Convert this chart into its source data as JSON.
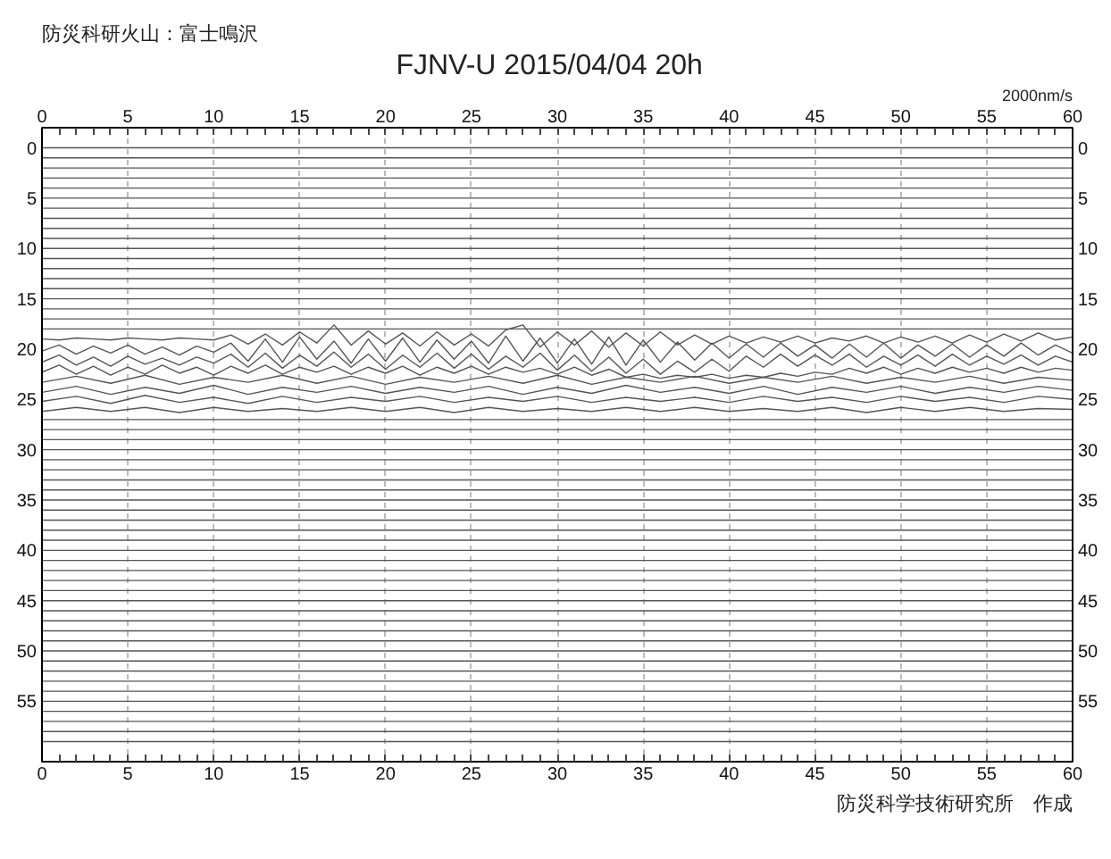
{
  "chart_data": {
    "type": "line",
    "title": "FJNV-U  2015/04/04  20h",
    "annotations": [
      "防災科研火山：富士鳴沢",
      "2000nm/s",
      "防災科学技術研究所　作成"
    ],
    "color": "#555555",
    "grid": "x",
    "xlim": [
      0,
      60
    ],
    "xticks": [
      0,
      {
        "value": 1,
        "label": null
      },
      {
        "value": 2,
        "label": null
      },
      {
        "value": 3,
        "label": null
      },
      {
        "value": 4,
        "label": null
      },
      5,
      {
        "value": 6,
        "label": null
      },
      {
        "value": 7,
        "label": null
      },
      {
        "value": 8,
        "label": null
      },
      {
        "value": 9,
        "label": null
      },
      10,
      {
        "value": 11,
        "label": null
      },
      {
        "value": 12,
        "label": null
      },
      {
        "value": 13,
        "label": null
      },
      {
        "value": 14,
        "label": null
      },
      15,
      {
        "value": 16,
        "label": null
      },
      {
        "value": 17,
        "label": null
      },
      {
        "value": 18,
        "label": null
      },
      {
        "value": 19,
        "label": null
      },
      20,
      {
        "value": 21,
        "label": null
      },
      {
        "value": 22,
        "label": null
      },
      {
        "value": 23,
        "label": null
      },
      {
        "value": 24,
        "label": null
      },
      25,
      {
        "value": 26,
        "label": null
      },
      {
        "value": 27,
        "label": null
      },
      {
        "value": 28,
        "label": null
      },
      {
        "value": 29,
        "label": null
      },
      30,
      {
        "value": 31,
        "label": null
      },
      {
        "value": 32,
        "label": null
      },
      {
        "value": 33,
        "label": null
      },
      {
        "value": 34,
        "label": null
      },
      35,
      {
        "value": 36,
        "label": null
      },
      {
        "value": 37,
        "label": null
      },
      {
        "value": 38,
        "label": null
      },
      {
        "value": 39,
        "label": null
      },
      40,
      {
        "value": 41,
        "label": null
      },
      {
        "value": 42,
        "label": null
      },
      {
        "value": 43,
        "label": null
      },
      {
        "value": 44,
        "label": null
      },
      45,
      {
        "value": 46,
        "label": null
      },
      {
        "value": 47,
        "label": null
      },
      {
        "value": 48,
        "label": null
      },
      {
        "value": 49,
        "label": null
      },
      50,
      {
        "value": 51,
        "label": null
      },
      {
        "value": 52,
        "label": null
      },
      {
        "value": 53,
        "label": null
      },
      {
        "value": 54,
        "label": null
      },
      55,
      {
        "value": 56,
        "label": null
      },
      {
        "value": 57,
        "label": null
      },
      {
        "value": 58,
        "label": null
      },
      {
        "value": 59,
        "label": null
      },
      60
    ],
    "x2lim": [
      0,
      60
    ],
    "x2ticks": [
      0,
      {
        "value": 1,
        "label": null
      },
      {
        "value": 2,
        "label": null
      },
      {
        "value": 3,
        "label": null
      },
      {
        "value": 4,
        "label": null
      },
      5,
      {
        "value": 6,
        "label": null
      },
      {
        "value": 7,
        "label": null
      },
      {
        "value": 8,
        "label": null
      },
      {
        "value": 9,
        "label": null
      },
      10,
      {
        "value": 11,
        "label": null
      },
      {
        "value": 12,
        "label": null
      },
      {
        "value": 13,
        "label": null
      },
      {
        "value": 14,
        "label": null
      },
      15,
      {
        "value": 16,
        "label": null
      },
      {
        "value": 17,
        "label": null
      },
      {
        "value": 18,
        "label": null
      },
      {
        "value": 19,
        "label": null
      },
      20,
      {
        "value": 21,
        "label": null
      },
      {
        "value": 22,
        "label": null
      },
      {
        "value": 23,
        "label": null
      },
      {
        "value": 24,
        "label": null
      },
      25,
      {
        "value": 26,
        "label": null
      },
      {
        "value": 27,
        "label": null
      },
      {
        "value": 28,
        "label": null
      },
      {
        "value": 29,
        "label": null
      },
      30,
      {
        "value": 31,
        "label": null
      },
      {
        "value": 32,
        "label": null
      },
      {
        "value": 33,
        "label": null
      },
      {
        "value": 34,
        "label": null
      },
      35,
      {
        "value": 36,
        "label": null
      },
      {
        "value": 37,
        "label": null
      },
      {
        "value": 38,
        "label": null
      },
      {
        "value": 39,
        "label": null
      },
      40,
      {
        "value": 41,
        "label": null
      },
      {
        "value": 42,
        "label": null
      },
      {
        "value": 43,
        "label": null
      },
      {
        "value": 44,
        "label": null
      },
      45,
      {
        "value": 46,
        "label": null
      },
      {
        "value": 47,
        "label": null
      },
      {
        "value": 48,
        "label": null
      },
      {
        "value": 49,
        "label": null
      },
      50,
      {
        "value": 51,
        "label": null
      },
      {
        "value": 52,
        "label": null
      },
      {
        "value": 53,
        "label": null
      },
      {
        "value": 54,
        "label": null
      },
      55,
      {
        "value": 56,
        "label": null
      },
      {
        "value": 57,
        "label": null
      },
      {
        "value": 58,
        "label": null
      },
      {
        "value": 59,
        "label": null
      },
      60
    ],
    "ylim": [
      61,
      -2
    ],
    "yticks": [
      0,
      5,
      10,
      15,
      20,
      25,
      30,
      35,
      40,
      45,
      50,
      55
    ],
    "y2lim": [
      61,
      -2
    ],
    "y2ticks": [
      0,
      5,
      10,
      15,
      20,
      25,
      30,
      35,
      40,
      45,
      50,
      55
    ],
    "x": [
      0,
      60
    ],
    "series": [
      {
        "values": [
          0,
          0
        ]
      },
      {
        "values": [
          1,
          1
        ]
      },
      {
        "values": [
          2,
          2
        ]
      },
      {
        "values": [
          3,
          3
        ]
      },
      {
        "values": [
          4,
          4
        ]
      },
      {
        "values": [
          5,
          5
        ]
      },
      {
        "values": [
          6,
          6
        ]
      },
      {
        "values": [
          7,
          7
        ]
      },
      {
        "values": [
          8,
          8
        ]
      },
      {
        "values": [
          9,
          9
        ]
      },
      {
        "values": [
          10,
          10
        ]
      },
      {
        "values": [
          11,
          11
        ]
      },
      {
        "values": [
          12,
          12
        ]
      },
      {
        "values": [
          13,
          13
        ]
      },
      {
        "values": [
          14,
          14
        ]
      },
      {
        "values": [
          15,
          15
        ]
      },
      {
        "values": [
          16,
          16
        ]
      },
      {
        "values": [
          17,
          17
        ]
      },
      {
        "values": [
          18,
          18
        ]
      },
      {
        "x": [
          0,
          1,
          2,
          3,
          4,
          5,
          6,
          7,
          8,
          9,
          10,
          11,
          12,
          13,
          14,
          15,
          16,
          17,
          18,
          19,
          20,
          21,
          22,
          23,
          24,
          25,
          26,
          27,
          28,
          29,
          30,
          31,
          32,
          33,
          34,
          35,
          36,
          37,
          38,
          39,
          40,
          41,
          42,
          43,
          44,
          45,
          46,
          47,
          48,
          49,
          50,
          51,
          52,
          53,
          54,
          55,
          56,
          57,
          58,
          59,
          60
        ],
        "values": [
          19.0,
          19.1,
          18.9,
          19.0,
          19.1,
          18.9,
          19.0,
          19.1,
          18.9,
          19.0,
          19.1,
          18.6,
          19.5,
          18.5,
          19.6,
          18.3,
          19.4,
          17.6,
          19.6,
          18.2,
          19.5,
          18.4,
          19.7,
          18.3,
          19.6,
          18.5,
          19.7,
          18.1,
          17.6,
          19.8,
          18.3,
          19.6,
          18.2,
          19.8,
          18.4,
          19.7,
          18.3,
          19.6,
          18.6,
          19.5,
          18.7,
          19.4,
          18.8,
          19.3,
          18.7,
          19.4,
          18.9,
          19.2,
          18.7,
          19.4,
          18.8,
          19.3,
          18.7,
          19.4,
          18.6,
          19.3,
          18.5,
          19.2,
          18.4,
          19.1,
          18.8
        ]
      },
      {
        "x": [
          0,
          1,
          2,
          3,
          4,
          5,
          6,
          7,
          8,
          9,
          10,
          11,
          12,
          13,
          14,
          15,
          16,
          17,
          18,
          19,
          20,
          21,
          22,
          23,
          24,
          25,
          26,
          27,
          28,
          29,
          30,
          31,
          32,
          33,
          34,
          35,
          36,
          37,
          38,
          39,
          40,
          41,
          42,
          43,
          44,
          45,
          46,
          47,
          48,
          49,
          50,
          51,
          52,
          53,
          54,
          55,
          56,
          57,
          58,
          59,
          60
        ],
        "values": [
          20.2,
          19.6,
          20.5,
          19.7,
          20.4,
          19.6,
          20.5,
          19.8,
          20.6,
          19.7,
          20.3,
          19.4,
          21.2,
          19.0,
          21.3,
          18.8,
          21.0,
          19.2,
          21.4,
          19.0,
          21.2,
          18.9,
          21.3,
          19.1,
          21.0,
          19.2,
          21.4,
          18.7,
          21.2,
          18.9,
          21.4,
          19.0,
          21.5,
          18.8,
          21.6,
          19.1,
          21.3,
          19.3,
          21.1,
          19.4,
          20.9,
          19.5,
          20.8,
          19.4,
          20.7,
          19.6,
          20.9,
          19.5,
          20.8,
          19.4,
          20.9,
          19.6,
          20.7,
          19.5,
          20.8,
          19.6,
          20.7,
          19.4,
          20.6,
          19.6,
          20.4
        ]
      },
      {
        "x": [
          0,
          1,
          2,
          3,
          4,
          5,
          6,
          7,
          8,
          9,
          10,
          11,
          12,
          13,
          14,
          15,
          16,
          17,
          18,
          19,
          20,
          21,
          22,
          23,
          24,
          25,
          26,
          27,
          28,
          29,
          30,
          31,
          32,
          33,
          34,
          35,
          36,
          37,
          38,
          39,
          40,
          41,
          42,
          43,
          44,
          45,
          46,
          47,
          48,
          49,
          50,
          51,
          52,
          53,
          54,
          55,
          56,
          57,
          58,
          59,
          60
        ],
        "values": [
          21.3,
          20.6,
          21.6,
          20.8,
          21.7,
          20.7,
          21.5,
          20.9,
          21.6,
          20.8,
          21.4,
          20.5,
          21.8,
          20.4,
          21.9,
          20.6,
          21.7,
          20.3,
          21.8,
          20.5,
          22.0,
          20.6,
          21.8,
          20.4,
          21.9,
          20.5,
          22.0,
          20.7,
          21.8,
          20.4,
          22.1,
          20.6,
          22.2,
          20.8,
          22.4,
          21.0,
          22.5,
          21.2,
          22.3,
          21.0,
          22.2,
          20.7,
          21.8,
          20.5,
          21.7,
          20.6,
          21.6,
          20.5,
          21.8,
          20.7,
          21.6,
          20.6,
          21.7,
          20.5,
          21.6,
          20.7,
          21.5,
          20.6,
          21.6,
          20.7,
          21.3
        ]
      },
      {
        "x": [
          0,
          1,
          2,
          3,
          4,
          5,
          6,
          7,
          8,
          9,
          10,
          11,
          12,
          13,
          14,
          15,
          16,
          17,
          18,
          19,
          20,
          21,
          22,
          23,
          24,
          25,
          26,
          27,
          28,
          29,
          30,
          31,
          32,
          33,
          34,
          35,
          36,
          37,
          38,
          39,
          40,
          41,
          42,
          43,
          44,
          45,
          46,
          47,
          48,
          49,
          50,
          51,
          52,
          53,
          54,
          55,
          56,
          57,
          58,
          59,
          60
        ],
        "values": [
          22.3,
          21.6,
          22.5,
          21.7,
          22.6,
          21.8,
          22.5,
          21.6,
          22.4,
          21.8,
          22.6,
          21.7,
          22.4,
          21.6,
          22.5,
          21.8,
          22.3,
          21.7,
          22.5,
          21.8,
          22.4,
          21.7,
          22.6,
          21.8,
          22.4,
          21.7,
          22.5,
          21.8,
          22.3,
          21.9,
          22.5,
          21.8,
          22.6,
          22.0,
          22.8,
          22.5,
          22.9,
          22.6,
          22.8,
          22.5,
          22.9,
          22.6,
          22.8,
          22.4,
          22.7,
          22.3,
          22.5,
          21.9,
          22.4,
          21.8,
          22.5,
          21.9,
          22.4,
          21.8,
          22.3,
          21.9,
          22.4,
          21.8,
          22.3,
          21.9,
          22.1
        ]
      },
      {
        "x": [
          0,
          2,
          4,
          6,
          8,
          10,
          12,
          14,
          16,
          18,
          20,
          22,
          24,
          26,
          28,
          30,
          32,
          34,
          36,
          38,
          40,
          42,
          44,
          46,
          48,
          50,
          52,
          54,
          56,
          58,
          60
        ],
        "values": [
          23.3,
          22.7,
          23.4,
          22.6,
          23.5,
          22.8,
          23.3,
          22.6,
          23.4,
          22.7,
          23.5,
          22.8,
          23.3,
          22.7,
          23.4,
          22.6,
          23.5,
          22.8,
          23.3,
          22.7,
          23.4,
          22.8,
          23.3,
          22.7,
          23.4,
          22.8,
          23.3,
          22.7,
          23.4,
          22.8,
          23.1
        ]
      },
      {
        "x": [
          0,
          2,
          4,
          6,
          8,
          10,
          12,
          14,
          16,
          18,
          20,
          22,
          24,
          26,
          28,
          30,
          32,
          34,
          36,
          38,
          40,
          42,
          44,
          46,
          48,
          50,
          52,
          54,
          56,
          58,
          60
        ],
        "values": [
          24.3,
          23.7,
          24.5,
          23.8,
          24.4,
          23.6,
          24.5,
          23.8,
          24.3,
          23.7,
          24.4,
          23.8,
          24.3,
          23.7,
          24.5,
          23.8,
          24.4,
          23.6,
          24.3,
          23.8,
          24.4,
          23.7,
          24.5,
          23.8,
          24.3,
          23.7,
          24.4,
          23.8,
          24.3,
          23.7,
          24.1
        ]
      },
      {
        "x": [
          0,
          2,
          4,
          6,
          8,
          10,
          12,
          14,
          16,
          18,
          20,
          22,
          24,
          26,
          28,
          30,
          32,
          34,
          36,
          38,
          40,
          42,
          44,
          46,
          48,
          50,
          52,
          54,
          56,
          58,
          60
        ],
        "values": [
          25.2,
          24.7,
          25.4,
          24.6,
          25.3,
          24.8,
          25.4,
          24.7,
          25.3,
          24.8,
          25.2,
          24.7,
          25.3,
          24.8,
          25.2,
          24.7,
          25.3,
          24.8,
          25.2,
          24.8,
          25.3,
          24.7,
          25.2,
          24.8,
          25.3,
          24.7,
          25.2,
          24.8,
          25.3,
          24.7,
          25.0
        ]
      },
      {
        "x": [
          0,
          2,
          4,
          6,
          8,
          10,
          12,
          14,
          16,
          18,
          20,
          22,
          24,
          26,
          28,
          30,
          32,
          34,
          36,
          38,
          40,
          42,
          44,
          46,
          48,
          50,
          52,
          54,
          56,
          58,
          60
        ],
        "values": [
          26.2,
          25.8,
          26.2,
          25.8,
          26.3,
          25.8,
          26.2,
          25.9,
          26.2,
          25.8,
          26.2,
          25.8,
          26.3,
          25.8,
          26.2,
          25.9,
          26.2,
          25.8,
          26.2,
          25.8,
          26.2,
          25.9,
          26.2,
          25.8,
          26.3,
          25.8,
          26.2,
          25.8,
          26.2,
          25.9,
          26.0
        ]
      },
      {
        "values": [
          27,
          27
        ]
      },
      {
        "values": [
          28,
          28
        ]
      },
      {
        "values": [
          29,
          29
        ]
      },
      {
        "values": [
          30,
          30
        ]
      },
      {
        "values": [
          31,
          31
        ]
      },
      {
        "values": [
          32,
          32
        ]
      },
      {
        "values": [
          33,
          33
        ]
      },
      {
        "values": [
          34,
          34
        ]
      },
      {
        "values": [
          35,
          35
        ]
      },
      {
        "values": [
          36,
          36
        ]
      },
      {
        "values": [
          37,
          37
        ]
      },
      {
        "values": [
          38,
          38
        ]
      },
      {
        "values": [
          39,
          39
        ]
      },
      {
        "values": [
          40,
          40
        ]
      },
      {
        "values": [
          41,
          41
        ]
      },
      {
        "values": [
          42,
          42
        ]
      },
      {
        "values": [
          43,
          43
        ]
      },
      {
        "values": [
          44,
          44
        ]
      },
      {
        "values": [
          45,
          45
        ]
      },
      {
        "values": [
          46,
          46
        ]
      },
      {
        "values": [
          47,
          47
        ]
      },
      {
        "values": [
          48,
          48
        ]
      },
      {
        "values": [
          49,
          49
        ]
      },
      {
        "values": [
          50,
          50
        ]
      },
      {
        "values": [
          51,
          51
        ]
      },
      {
        "values": [
          52,
          52
        ]
      },
      {
        "values": [
          53,
          53
        ]
      },
      {
        "values": [
          54,
          54
        ]
      },
      {
        "values": [
          55,
          55
        ]
      },
      {
        "values": [
          56,
          56
        ]
      },
      {
        "values": [
          57,
          57
        ]
      },
      {
        "values": [
          58,
          58
        ]
      },
      {
        "values": [
          59,
          59
        ]
      }
    ]
  }
}
